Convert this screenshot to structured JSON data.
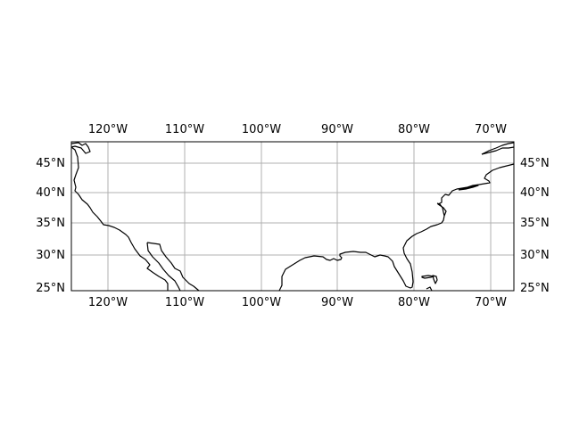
{
  "map": {
    "projection": "PlateCarree",
    "extent": {
      "lon_min": -125,
      "lon_max": -66.5,
      "lat_min": 24.5,
      "lat_max": 48.5
    },
    "gridlines": true,
    "meridian_labels": [
      {
        "lon": -120,
        "text": "120°W"
      },
      {
        "lon": -110,
        "text": "110°W"
      },
      {
        "lon": -100,
        "text": "100°W"
      },
      {
        "lon": -90,
        "text": "90°W"
      },
      {
        "lon": -80,
        "text": "80°W"
      },
      {
        "lon": -70,
        "text": "70°W"
      }
    ],
    "parallel_labels": [
      {
        "lat": 45,
        "text": "45°N"
      },
      {
        "lat": 40,
        "text": "40°N"
      },
      {
        "lat": 35,
        "text": "35°N"
      },
      {
        "lat": 30,
        "text": "30°N"
      },
      {
        "lat": 25,
        "text": "25°N"
      }
    ],
    "label_positions": [
      "top",
      "bottom",
      "left",
      "right"
    ],
    "colors": {
      "coastline": "#000000",
      "gridlines": "#b0b0b0",
      "frame": "#000000",
      "background": "#ffffff"
    }
  }
}
